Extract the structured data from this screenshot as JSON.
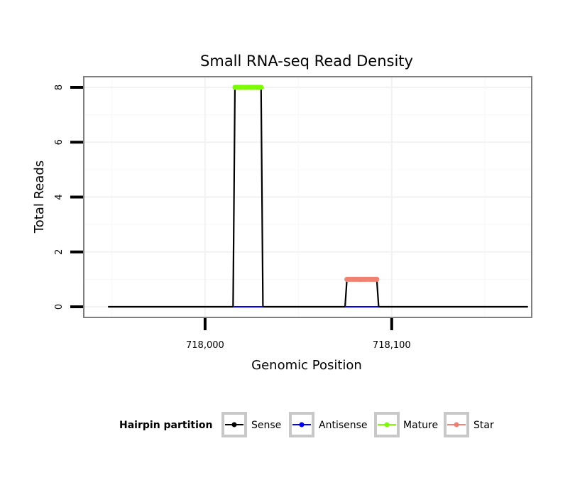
{
  "chart_data": {
    "type": "line",
    "title": "Small RNA-seq Read Density",
    "xlabel": "Genomic Position",
    "ylabel": "Total Reads",
    "xlim": [
      717935,
      718175
    ],
    "ylim": [
      0,
      8.2
    ],
    "x_ticks": [
      718000,
      718100
    ],
    "x_tick_labels": [
      "718,000",
      "718,100"
    ],
    "y_ticks": [
      0,
      2,
      4,
      6,
      8
    ],
    "y_tick_labels": [
      "0",
      "2",
      "4",
      "6",
      "8"
    ],
    "grid": true,
    "legend": {
      "title": "Hairpin partition",
      "position": "bottom",
      "entries": [
        "Sense",
        "Antisense",
        "Mature",
        "Star"
      ]
    },
    "series": [
      {
        "name": "Sense",
        "color": "#000000",
        "x": [
          717948,
          718015,
          718016,
          718030,
          718031,
          718075,
          718076,
          718092,
          718093,
          718173
        ],
        "values": [
          0,
          0,
          8,
          8,
          0,
          0,
          1,
          1,
          0,
          0
        ]
      },
      {
        "name": "Antisense",
        "color": "#0000ff",
        "x": [
          718015,
          718031,
          718075,
          718093
        ],
        "values": [
          0,
          0,
          0,
          0
        ],
        "segments": [
          [
            0,
            1
          ],
          [
            2,
            3
          ]
        ]
      },
      {
        "name": "Mature",
        "color": "#7cfc00",
        "x": [
          718016,
          718017,
          718018,
          718019,
          718020,
          718021,
          718022,
          718023,
          718024,
          718025,
          718026,
          718027,
          718028,
          718029,
          718030
        ],
        "values": [
          8,
          8,
          8,
          8,
          8,
          8,
          8,
          8,
          8,
          8,
          8,
          8,
          8,
          8,
          8
        ]
      },
      {
        "name": "Star",
        "color": "#f08070",
        "x": [
          718076,
          718077,
          718078,
          718079,
          718080,
          718081,
          718082,
          718083,
          718084,
          718085,
          718086,
          718087,
          718088,
          718089,
          718090,
          718091,
          718092
        ],
        "values": [
          1,
          1,
          1,
          1,
          1,
          1,
          1,
          1,
          1,
          1,
          1,
          1,
          1,
          1,
          1,
          1,
          1
        ]
      }
    ]
  }
}
